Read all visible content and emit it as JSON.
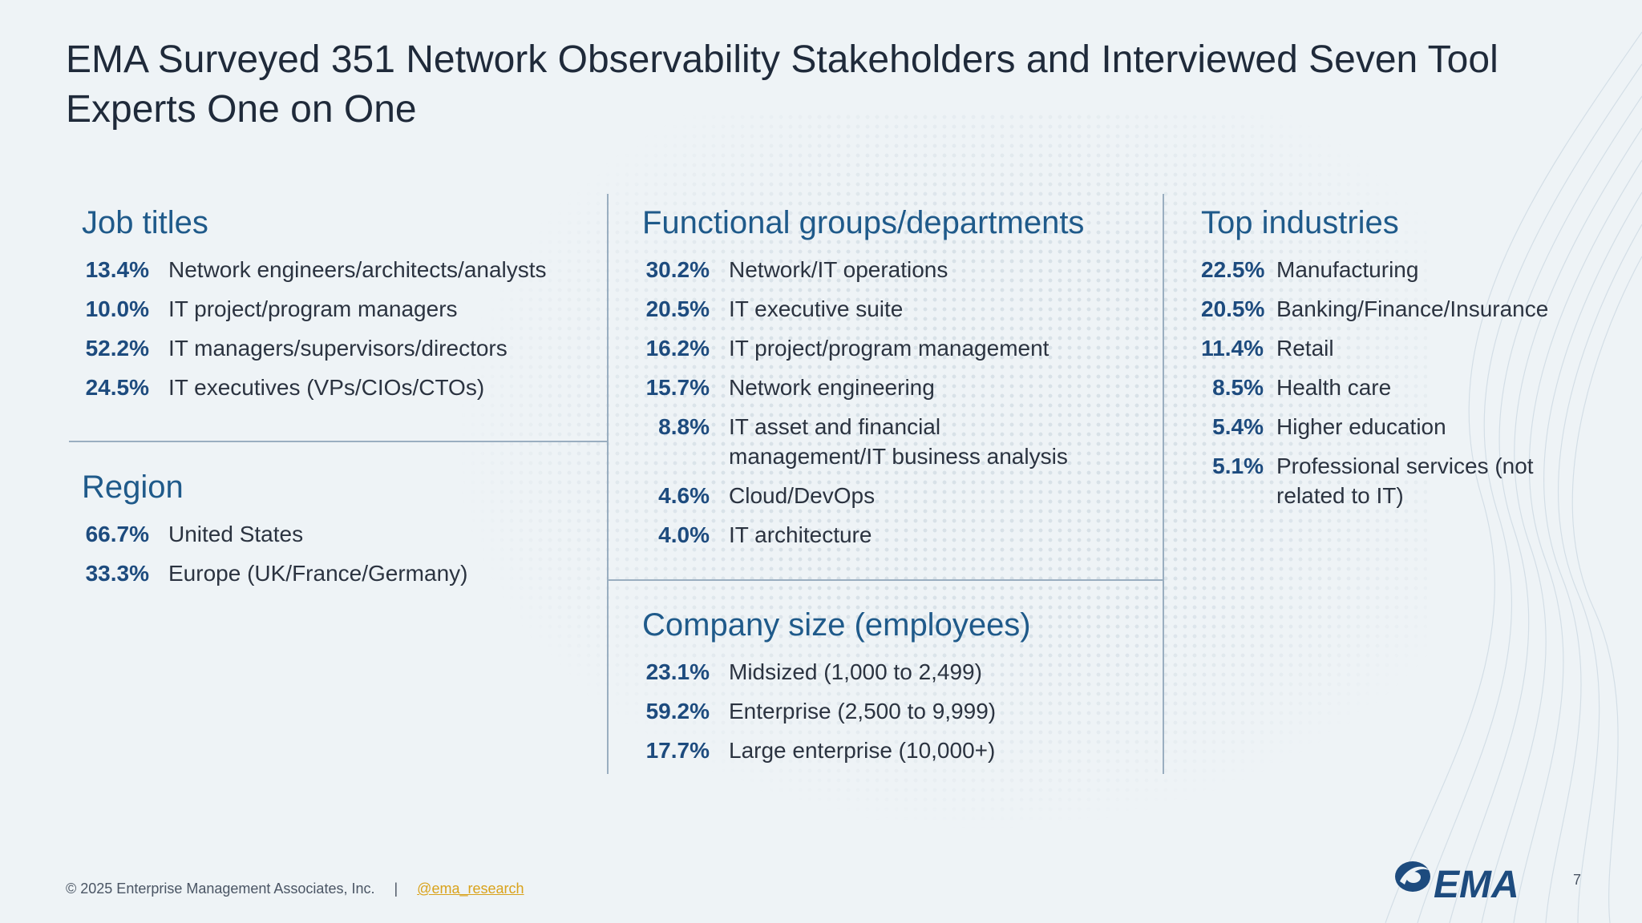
{
  "title": "EMA Surveyed 351 Network Observability Stakeholders and Interviewed Seven Tool Experts One on One",
  "sections": {
    "job_titles": {
      "heading": "Job titles",
      "items": [
        {
          "pct": "13.4%",
          "label": "Network engineers/architects/analysts"
        },
        {
          "pct": "10.0%",
          "label": "IT project/program managers"
        },
        {
          "pct": "52.2%",
          "label": "IT managers/supervisors/directors"
        },
        {
          "pct": "24.5%",
          "label": "IT executives (VPs/CIOs/CTOs)"
        }
      ]
    },
    "region": {
      "heading": "Region",
      "items": [
        {
          "pct": "66.7%",
          "label": "United States"
        },
        {
          "pct": "33.3%",
          "label": "Europe (UK/France/Germany)"
        }
      ]
    },
    "functional": {
      "heading": "Functional groups/departments",
      "items": [
        {
          "pct": "30.2%",
          "label": "Network/IT operations"
        },
        {
          "pct": "20.5%",
          "label": "IT executive suite"
        },
        {
          "pct": "16.2%",
          "label": "IT project/program management"
        },
        {
          "pct": "15.7%",
          "label": "Network engineering"
        },
        {
          "pct": "8.8%",
          "label": "IT asset and financial management/IT business analysis"
        },
        {
          "pct": "4.6%",
          "label": "Cloud/DevOps"
        },
        {
          "pct": "4.0%",
          "label": "IT architecture"
        }
      ]
    },
    "company_size": {
      "heading": "Company size (employees)",
      "items": [
        {
          "pct": "23.1%",
          "label": "Midsized (1,000 to 2,499)"
        },
        {
          "pct": "59.2%",
          "label": "Enterprise (2,500 to 9,999)"
        },
        {
          "pct": "17.7%",
          "label": "Large enterprise (10,000+)"
        }
      ]
    },
    "industries": {
      "heading": "Top industries",
      "items": [
        {
          "pct": "22.5%",
          "label": "Manufacturing"
        },
        {
          "pct": "20.5%",
          "label": "Banking/Finance/Insurance"
        },
        {
          "pct": "11.4%",
          "label": "Retail"
        },
        {
          "pct": "8.5%",
          "label": "Health care"
        },
        {
          "pct": "5.4%",
          "label": "Higher education"
        },
        {
          "pct": "5.1%",
          "label": "Professional services (not related to IT)"
        }
      ]
    }
  },
  "footer": {
    "copyright": "© 2025 Enterprise Management Associates, Inc.",
    "separator": "|",
    "handle": "@ema_research",
    "page_number": "7"
  },
  "logo": {
    "text": "EMA",
    "icon": "ema-logo-swoosh"
  },
  "colors": {
    "accent": "#1f5a8a",
    "percent": "#1d4b7e",
    "link": "#d9a21b",
    "background": "#eef3f6"
  }
}
